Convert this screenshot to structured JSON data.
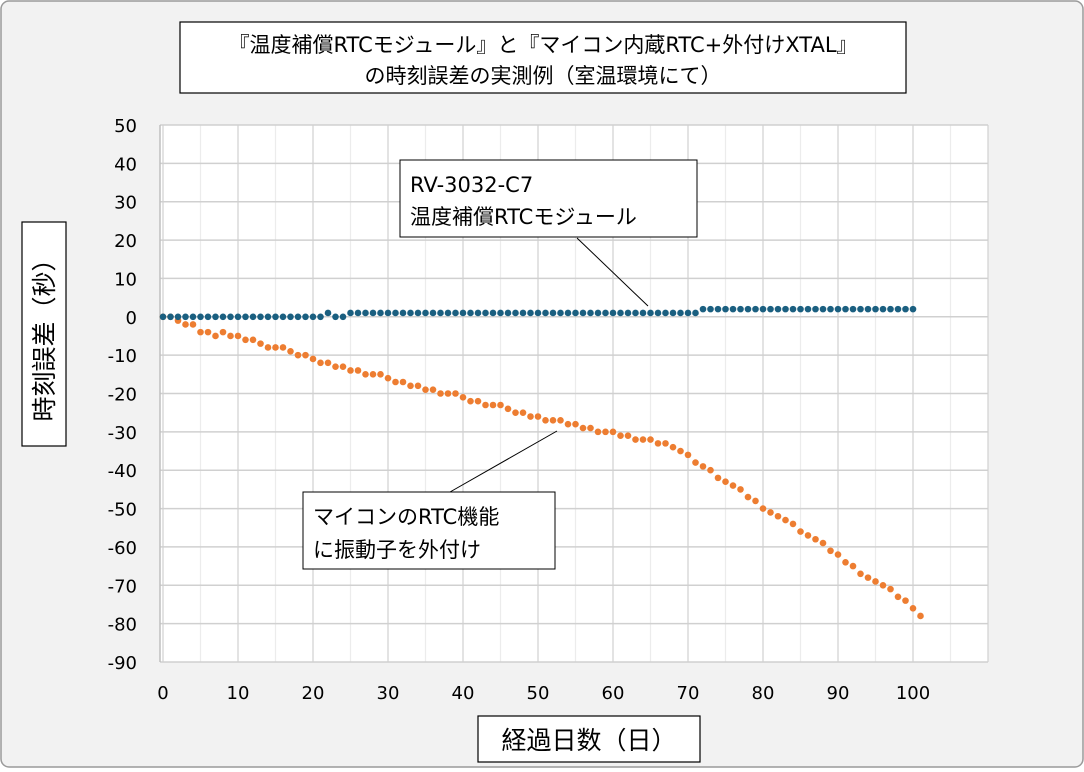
{
  "chart_data": {
    "type": "scatter",
    "title_lines": [
      "『温度補償RTCモジュール』と『マイコン内蔵RTC+外付けXTAL』",
      "の時刻誤差の実測例（室温環境にて）"
    ],
    "xlabel": "経過日数（日）",
    "ylabel": "時刻誤差（秒）",
    "xlim": [
      0,
      110
    ],
    "ylim": [
      -90,
      50
    ],
    "xticks": [
      0,
      10,
      20,
      30,
      40,
      50,
      60,
      70,
      80,
      90,
      100
    ],
    "yticks": [
      50,
      40,
      30,
      20,
      10,
      0,
      -10,
      -20,
      -30,
      -40,
      -50,
      -60,
      -70,
      -80,
      -90
    ],
    "grid": true,
    "series": [
      {
        "name": "RV-3032-C7 温度補償RTCモジュール",
        "color": "#1a5f80",
        "x_start": 0,
        "x_step": 1,
        "values": [
          0,
          0,
          0,
          0,
          0,
          0,
          0,
          0,
          0,
          0,
          0,
          0,
          0,
          0,
          0,
          0,
          0,
          0,
          0,
          0,
          0,
          0,
          1,
          0,
          0,
          1,
          1,
          1,
          1,
          1,
          1,
          1,
          1,
          1,
          1,
          1,
          1,
          1,
          1,
          1,
          1,
          1,
          1,
          1,
          1,
          1,
          1,
          1,
          1,
          1,
          1,
          1,
          1,
          1,
          1,
          1,
          1,
          1,
          1,
          1,
          1,
          1,
          1,
          1,
          1,
          1,
          1,
          1,
          1,
          1,
          1,
          1,
          2,
          2,
          2,
          2,
          2,
          2,
          2,
          2,
          2,
          2,
          2,
          2,
          2,
          2,
          2,
          2,
          2,
          2,
          2,
          2,
          2,
          2,
          2,
          2,
          2,
          2,
          2,
          2,
          2
        ]
      },
      {
        "name": "マイコンのRTC機能に振動子を外付け",
        "color": "#ed7d31",
        "x_start": 0,
        "x_step": 1,
        "values": [
          0,
          0,
          -1,
          -2,
          -2,
          -4,
          -4,
          -5,
          -4,
          -5,
          -5,
          -6,
          -6,
          -7,
          -8,
          -8,
          -8,
          -9,
          -10,
          -10,
          -11,
          -12,
          -12,
          -13,
          -13,
          -14,
          -14,
          -15,
          -15,
          -15,
          -16,
          -17,
          -17,
          -18,
          -18,
          -19,
          -19,
          -20,
          -20,
          -20,
          -21,
          -22,
          -22,
          -23,
          -23,
          -23,
          -24,
          -25,
          -25,
          -26,
          -26,
          -27,
          -27,
          -27,
          -28,
          -28,
          -29,
          -29,
          -30,
          -30,
          -30,
          -31,
          -31,
          -32,
          -32,
          -32,
          -33,
          -33,
          -34,
          -35,
          -36,
          -38,
          -39,
          -40,
          -42,
          -43,
          -44,
          -45,
          -47,
          -48,
          -50,
          -51,
          -52,
          -53,
          -54,
          -56,
          -57,
          -58,
          -59,
          -61,
          -62,
          -64,
          -65,
          -67,
          -68,
          -69,
          -70,
          -71,
          -73,
          -74,
          -76,
          -78
        ]
      }
    ],
    "annotations": [
      {
        "lines": [
          "RV-3032-C7",
          "温度補償RTCモジュール"
        ],
        "points_to_x": 65,
        "series": 0
      },
      {
        "lines": [
          "マイコンのRTC機能",
          "に振動子を外付け"
        ],
        "points_to_x": 53,
        "series": 1
      }
    ]
  }
}
